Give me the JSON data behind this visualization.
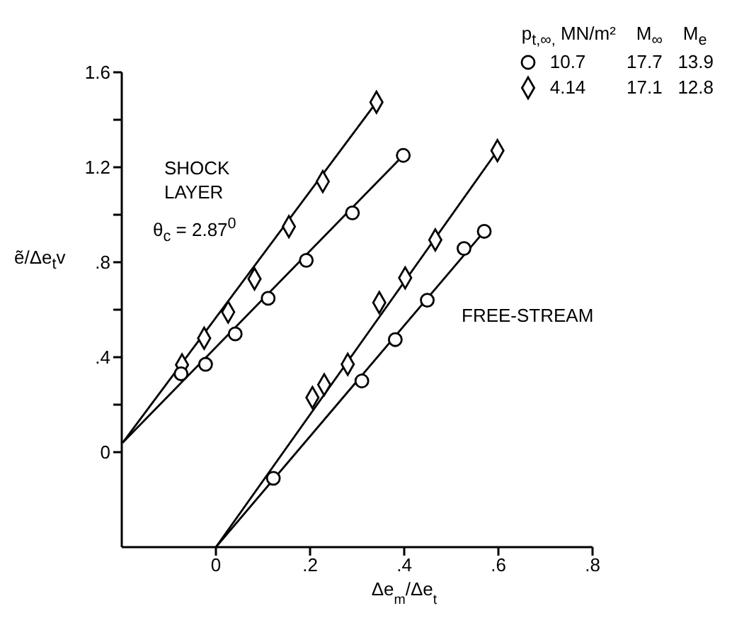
{
  "chart_data": {
    "type": "scatter",
    "xlabel": "Δe$_{m}$/Δe$_{t}$",
    "ylabel": "ẽ/Δe$_{t}$v",
    "legend_title": "p$_{t,∞,}$ MN/m²    M$_{∞}$    M$_{e}$",
    "legend": "top right",
    "annotations": [
      "SHOCK LAYER",
      "θ$_{c}$ = 2.87$^{0}$",
      "FREE-STREAM"
    ],
    "xlim": [
      -0.2,
      0.8
    ],
    "xticks": [
      0,
      {
        "value": 0.2,
        "label": ".2"
      },
      {
        "value": 0.4,
        "label": ".4"
      },
      {
        "value": 0.6,
        "label": ".6"
      },
      {
        "value": 0.8,
        "label": ".8"
      }
    ],
    "ylim": [
      -0.4,
      1.6
    ],
    "yticks": [
      0,
      {
        "value": 0.2,
        "label": null
      },
      {
        "value": 0.4,
        "label": ".4"
      },
      {
        "value": 0.6,
        "label": null
      },
      {
        "value": 0.8,
        "label": ".8"
      },
      {
        "value": 1.0,
        "label": null
      },
      1.2,
      {
        "value": 1.4,
        "label": null
      },
      1.6
    ],
    "series": [
      {
        "name": "10.7        17.7   13.9",
        "color": "#000000",
        "marker": "circle",
        "x": [
          -0.074,
          -0.022,
          0.041,
          0.111,
          0.192,
          0.29,
          0.398
        ],
        "values": [
          0.33,
          0.37,
          0.498,
          0.648,
          0.808,
          1.008,
          1.25
        ]
      },
      {
        "name": "4.14        17.1   12.8",
        "color": "#000000",
        "marker": "diamond",
        "x": [
          -0.072,
          -0.025,
          0.026,
          0.082,
          0.155,
          0.227,
          0.341
        ],
        "values": [
          0.368,
          0.48,
          0.59,
          0.73,
          0.95,
          1.14,
          1.474
        ]
      },
      {
        "type": "line",
        "color": "#000000",
        "marker": "none",
        "x": [
          -0.198,
          0.398
        ],
        "values": [
          0.04,
          1.25
        ]
      },
      {
        "type": "line",
        "color": "#000000",
        "marker": "none",
        "x": [
          -0.198,
          0.341
        ],
        "values": [
          0.04,
          1.474
        ]
      },
      {
        "color": "#000000",
        "marker": "circle",
        "x": [
          0.122,
          0.31,
          0.381,
          0.449,
          0.527,
          0.57
        ],
        "values": [
          -0.11,
          0.3,
          0.474,
          0.64,
          0.858,
          0.93
        ]
      },
      {
        "color": "#000000",
        "marker": "diamond",
        "x": [
          0.205,
          0.23,
          0.28,
          0.347,
          0.402,
          0.466,
          0.598
        ],
        "values": [
          0.23,
          0.284,
          0.37,
          0.63,
          0.734,
          0.894,
          1.27
        ]
      },
      {
        "type": "line",
        "color": "#000000",
        "marker": "none",
        "x": [
          0,
          0.57
        ],
        "values": [
          -0.4,
          0.93
        ]
      },
      {
        "type": "line",
        "color": "#000000",
        "marker": "none",
        "x": [
          0,
          0.598
        ],
        "values": [
          -0.4,
          1.27
        ]
      }
    ]
  }
}
